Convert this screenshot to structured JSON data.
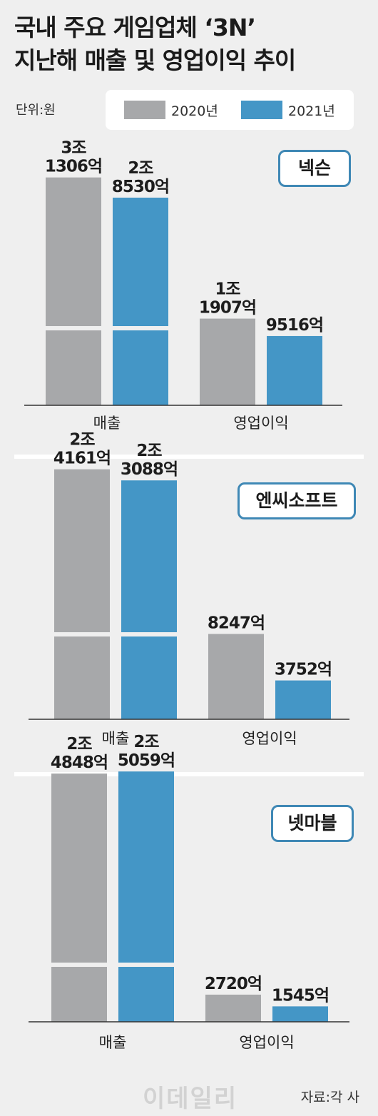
{
  "title_line1": "국내 주요 게임업체 ‘3N’",
  "title_line2": "지난해 매출 및 영업이익 추이",
  "unit": "단위:원",
  "source": "자료:각 사",
  "watermark": "이데일리",
  "colors": {
    "y2020": "#a7a8aa",
    "y2021": "#4496c6",
    "badge_border": "#3f88b5"
  },
  "chart_data": [
    {
      "type": "bar",
      "company": "넥슨",
      "categories": [
        "매출",
        "영업이익"
      ],
      "series": [
        {
          "name": "2020년",
          "values": [
            31306,
            11907
          ],
          "labels": [
            [
              "3조",
              "1306억"
            ],
            [
              "1조",
              "1907억"
            ]
          ]
        },
        {
          "name": "2021년",
          "values": [
            28530,
            9516
          ],
          "labels": [
            [
              "2조",
              "8530억"
            ],
            [
              "9516억"
            ]
          ]
        }
      ],
      "unit": "억원",
      "axis_break": true
    },
    {
      "type": "bar",
      "company": "엔씨소프트",
      "categories": [
        "매출",
        "영업이익"
      ],
      "series": [
        {
          "name": "2020년",
          "values": [
            24161,
            8247
          ],
          "labels": [
            [
              "2조",
              "4161억"
            ],
            [
              "8247억"
            ]
          ]
        },
        {
          "name": "2021년",
          "values": [
            23088,
            3752
          ],
          "labels": [
            [
              "2조",
              "3088억"
            ],
            [
              "3752억"
            ]
          ]
        }
      ],
      "unit": "억원",
      "axis_break": true
    },
    {
      "type": "bar",
      "company": "넷마블",
      "categories": [
        "매출",
        "영업이익"
      ],
      "series": [
        {
          "name": "2020년",
          "values": [
            24848,
            2720
          ],
          "labels": [
            [
              "2조",
              "4848억"
            ],
            [
              "2720억"
            ]
          ]
        },
        {
          "name": "2021년",
          "values": [
            25059,
            1545
          ],
          "labels": [
            [
              "2조",
              "5059억"
            ],
            [
              "1545억"
            ]
          ]
        }
      ],
      "unit": "억원",
      "axis_break": true
    }
  ]
}
